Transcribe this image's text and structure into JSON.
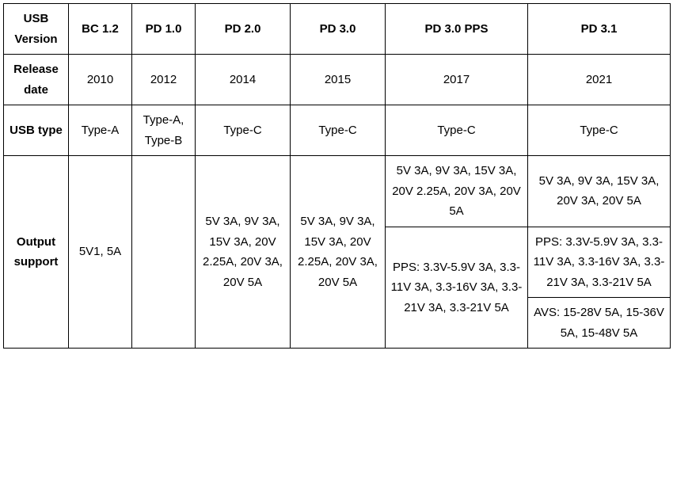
{
  "columns": {
    "header_label": "USB Version",
    "bc12": "BC 1.2",
    "pd10": "PD 1.0",
    "pd20": "PD 2.0",
    "pd30": "PD 3.0",
    "pps": "PD 3.0 PPS",
    "pd31": "PD 3.1"
  },
  "rows": {
    "release": {
      "label": "Release date",
      "bc12": "2010",
      "pd10": "2012",
      "pd20": "2014",
      "pd30": "2015",
      "pps": "2017",
      "pd31": "2021"
    },
    "usbtype": {
      "label": "USB type",
      "bc12": "Type-A",
      "pd10": "Type-A, Type-B",
      "pd20": "Type-C",
      "pd30": "Type-C",
      "pps": "Type-C",
      "pd31": "Type-C"
    },
    "output": {
      "label": "Output support",
      "bc12": "5V1, 5A",
      "pd10": "",
      "pd20": "5V 3A, 9V 3A, 15V 3A, 20V 2.25A, 20V 3A, 20V 5A",
      "pd30": "5V 3A, 9V 3A, 15V 3A, 20V 2.25A, 20V 3A, 20V 5A",
      "pps_fixed": "5V 3A, 9V 3A, 15V 3A, 20V 2.25A, 20V 3A, 20V 5A",
      "pps_pps": "PPS: 3.3V-5.9V 3A, 3.3-11V 3A, 3.3-16V 3A, 3.3-21V 3A, 3.3-21V 5A",
      "pd31_fixed": "5V 3A, 9V 3A, 15V 3A, 20V 3A, 20V 5A",
      "pd31_pps": "PPS: 3.3V-5.9V 3A, 3.3-11V 3A, 3.3-16V 3A, 3.3-21V 3A, 3.3-21V 5A",
      "pd31_avs": "AVS: 15-28V 5A, 15-36V 5A, 15-48V 5A"
    }
  },
  "style": {
    "font_family": "Arial",
    "font_size_pt": 11,
    "border_color": "#000000",
    "background_color": "#ffffff",
    "text_color": "#000000",
    "line_height": 1.7
  }
}
